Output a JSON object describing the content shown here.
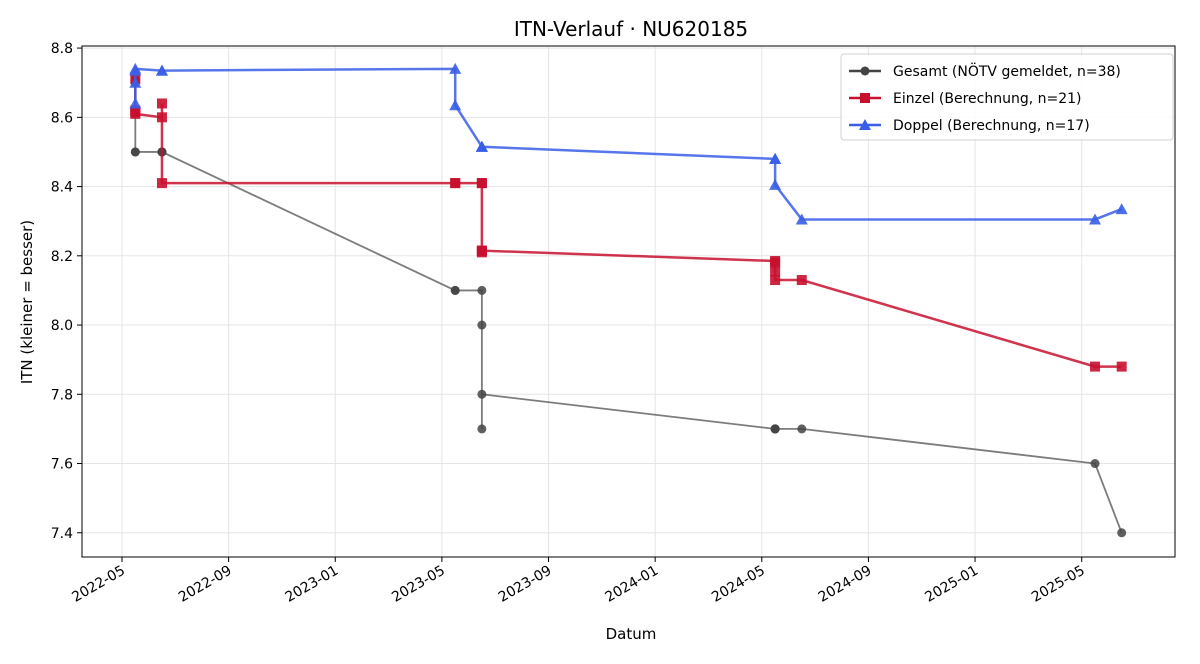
{
  "chart_data": {
    "type": "line",
    "title": "ITN-Verlauf · NU620185",
    "x_label": "Datum",
    "y_label": "ITN  (kleiner = besser)",
    "xlim": [
      "2022-03",
      "2025-08"
    ],
    "xticks": [
      "2022-05",
      "2022-09",
      "2023-01",
      "2023-05",
      "2023-09",
      "2024-01",
      "2024-05",
      "2024-09",
      "2025-01",
      "2025-05"
    ],
    "ylim": [
      7.33,
      8.806
    ],
    "yticks": [
      {
        "value": 7.4,
        "label": "7.4"
      },
      {
        "value": 7.6,
        "label": "7.6"
      },
      {
        "value": 7.8,
        "label": "7.8"
      },
      {
        "value": 8.0,
        "label": "8.0"
      },
      {
        "value": 8.2,
        "label": "8.2"
      },
      {
        "value": 8.4,
        "label": "8.4"
      },
      {
        "value": 8.6,
        "label": "8.6"
      },
      {
        "value": 8.8,
        "label": "8.8"
      }
    ],
    "grid": true,
    "legend": "upper right",
    "series": [
      {
        "name": "Gesamt (NÖTV gemeldet, n=38)",
        "color": "#444444",
        "marker": "circle",
        "x": [
          "2022-05",
          "2022-05",
          "2022-05",
          "2022-05",
          "2022-06",
          "2022-06",
          "2022-06",
          "2023-05",
          "2023-05",
          "2023-06",
          "2023-06",
          "2023-06",
          "2023-06",
          "2024-05",
          "2024-05",
          "2024-05",
          "2024-05",
          "2024-06",
          "2025-05",
          "2025-06"
        ],
        "values": [
          8.71,
          8.7,
          8.5,
          8.5,
          8.5,
          8.5,
          8.5,
          8.1,
          8.1,
          8.1,
          8.0,
          7.7,
          7.8,
          7.7,
          7.7,
          7.7,
          7.7,
          7.7,
          7.6,
          7.4
        ]
      },
      {
        "name": "Einzel (Berechnung, n=21)",
        "color": "#c8102e",
        "marker": "square",
        "x": [
          "2022-05",
          "2022-05",
          "2022-05",
          "2022-05",
          "2022-06",
          "2022-06",
          "2022-06",
          "2023-05",
          "2023-05",
          "2023-06",
          "2023-06",
          "2023-06",
          "2023-06",
          "2023-06",
          "2024-05",
          "2024-05",
          "2024-05",
          "2024-05",
          "2024-06",
          "2025-05",
          "2025-06"
        ],
        "values": [
          8.71,
          8.62,
          8.615,
          8.61,
          8.6,
          8.64,
          8.41,
          8.41,
          8.41,
          8.41,
          8.41,
          8.21,
          8.215,
          8.215,
          8.185,
          8.18,
          8.155,
          8.13,
          8.13,
          7.88,
          7.88
        ]
      },
      {
        "name": "Doppel (Berechnung, n=17)",
        "color": "#3a5ee8",
        "marker": "triangle",
        "x": [
          "2022-05",
          "2022-05",
          "2022-05",
          "2022-05",
          "2022-06",
          "2022-06",
          "2023-05",
          "2023-05",
          "2023-06",
          "2023-06",
          "2023-06",
          "2024-05",
          "2024-05",
          "2024-05",
          "2024-06",
          "2025-05",
          "2025-06"
        ],
        "values": [
          8.735,
          8.7,
          8.64,
          8.74,
          8.735,
          8.735,
          8.74,
          8.635,
          8.515,
          8.515,
          8.515,
          8.48,
          8.48,
          8.405,
          8.305,
          8.305,
          8.335
        ]
      }
    ]
  }
}
